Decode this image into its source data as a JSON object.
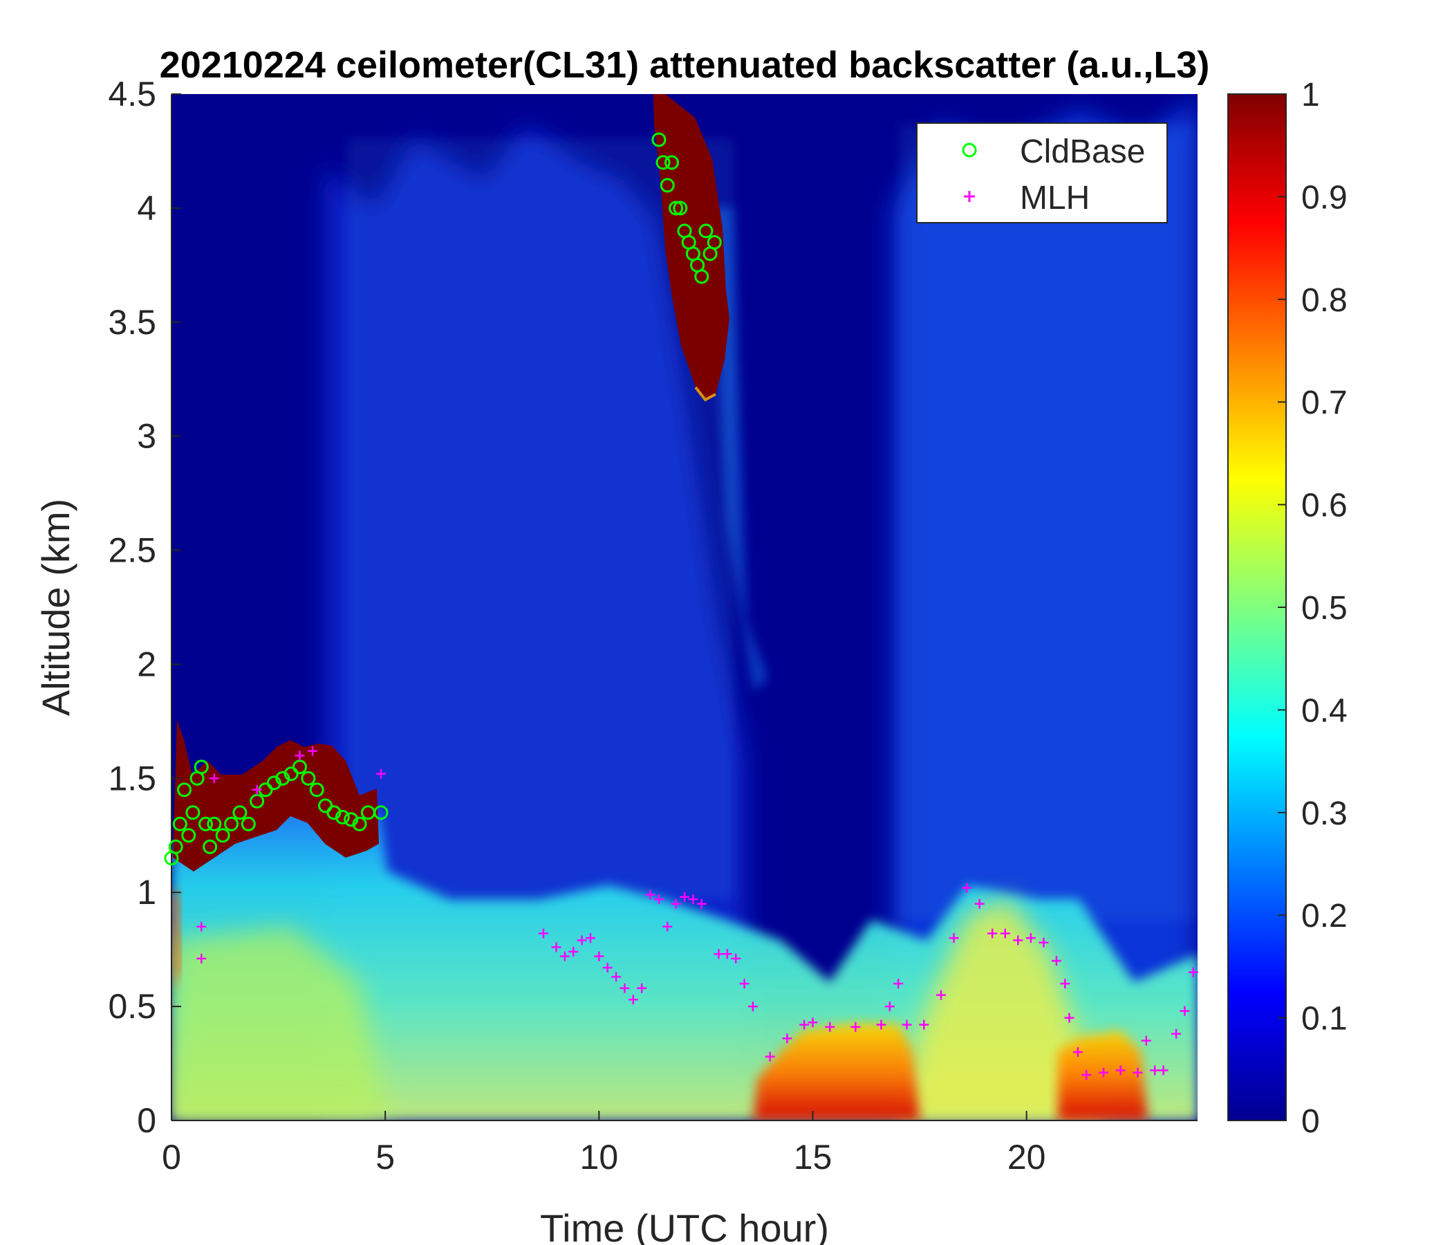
{
  "chart_data": {
    "type": "heatmap",
    "title": "20210224 ceilometer(CL31) attenuated backscatter (a.u.,L3)",
    "xlabel": "Time (UTC hour)",
    "ylabel": "Altitude (km)",
    "xlim": [
      0,
      24
    ],
    "ylim": [
      0,
      4.5
    ],
    "xticks": [
      0,
      5,
      10,
      15,
      20
    ],
    "yticks": [
      0,
      0.5,
      1,
      1.5,
      2,
      2.5,
      3,
      3.5,
      4,
      4.5
    ],
    "colorbar": {
      "colormap": "jet",
      "clim": [
        0,
        1
      ],
      "ticks": [
        0,
        0.1,
        0.2,
        0.3,
        0.4,
        0.5,
        0.6,
        0.7,
        0.8,
        0.9,
        1
      ]
    },
    "legend": {
      "location": "top-right",
      "entries": [
        "CldBase",
        "MLH"
      ]
    },
    "series": [
      {
        "name": "CldBase",
        "marker": "circle",
        "color": "#00ff00",
        "points": [
          [
            0.0,
            1.15
          ],
          [
            0.1,
            1.2
          ],
          [
            0.2,
            1.3
          ],
          [
            0.3,
            1.45
          ],
          [
            0.4,
            1.25
          ],
          [
            0.5,
            1.35
          ],
          [
            0.6,
            1.5
          ],
          [
            0.7,
            1.55
          ],
          [
            0.8,
            1.3
          ],
          [
            0.9,
            1.2
          ],
          [
            1.0,
            1.3
          ],
          [
            1.2,
            1.25
          ],
          [
            1.4,
            1.3
          ],
          [
            1.6,
            1.35
          ],
          [
            1.8,
            1.3
          ],
          [
            2.0,
            1.4
          ],
          [
            2.2,
            1.45
          ],
          [
            2.4,
            1.48
          ],
          [
            2.6,
            1.5
          ],
          [
            2.8,
            1.52
          ],
          [
            3.0,
            1.55
          ],
          [
            3.2,
            1.5
          ],
          [
            3.4,
            1.45
          ],
          [
            3.6,
            1.38
          ],
          [
            3.8,
            1.35
          ],
          [
            4.0,
            1.33
          ],
          [
            4.2,
            1.32
          ],
          [
            4.4,
            1.3
          ],
          [
            4.6,
            1.35
          ],
          [
            4.9,
            1.35
          ],
          [
            11.4,
            4.3
          ],
          [
            11.5,
            4.2
          ],
          [
            11.6,
            4.1
          ],
          [
            11.7,
            4.2
          ],
          [
            11.8,
            4.0
          ],
          [
            11.9,
            4.0
          ],
          [
            12.0,
            3.9
          ],
          [
            12.1,
            3.85
          ],
          [
            12.2,
            3.8
          ],
          [
            12.3,
            3.75
          ],
          [
            12.4,
            3.7
          ],
          [
            12.5,
            3.9
          ],
          [
            12.6,
            3.8
          ],
          [
            12.7,
            3.85
          ]
        ]
      },
      {
        "name": "MLH",
        "marker": "plus",
        "color": "#ff00ff",
        "points": [
          [
            0.7,
            0.85
          ],
          [
            0.7,
            0.71
          ],
          [
            1.0,
            1.5
          ],
          [
            2.0,
            1.45
          ],
          [
            3.0,
            1.6
          ],
          [
            3.3,
            1.62
          ],
          [
            4.9,
            1.52
          ],
          [
            8.7,
            0.82
          ],
          [
            9.0,
            0.76
          ],
          [
            9.2,
            0.72
          ],
          [
            9.4,
            0.74
          ],
          [
            9.6,
            0.79
          ],
          [
            9.8,
            0.8
          ],
          [
            10.0,
            0.72
          ],
          [
            10.2,
            0.67
          ],
          [
            10.4,
            0.63
          ],
          [
            10.6,
            0.58
          ],
          [
            10.8,
            0.53
          ],
          [
            11.0,
            0.58
          ],
          [
            11.2,
            0.99
          ],
          [
            11.4,
            0.97
          ],
          [
            11.6,
            0.85
          ],
          [
            11.8,
            0.95
          ],
          [
            12.0,
            0.98
          ],
          [
            12.2,
            0.97
          ],
          [
            12.4,
            0.95
          ],
          [
            12.8,
            0.73
          ],
          [
            13.0,
            0.73
          ],
          [
            13.2,
            0.71
          ],
          [
            13.4,
            0.6
          ],
          [
            13.6,
            0.5
          ],
          [
            14.0,
            0.28
          ],
          [
            14.4,
            0.36
          ],
          [
            14.8,
            0.42
          ],
          [
            15.0,
            0.43
          ],
          [
            15.4,
            0.41
          ],
          [
            16.0,
            0.41
          ],
          [
            16.6,
            0.42
          ],
          [
            16.8,
            0.5
          ],
          [
            17.0,
            0.6
          ],
          [
            17.2,
            0.42
          ],
          [
            17.6,
            0.42
          ],
          [
            18.0,
            0.55
          ],
          [
            18.3,
            0.8
          ],
          [
            18.6,
            1.02
          ],
          [
            18.9,
            0.95
          ],
          [
            19.2,
            0.82
          ],
          [
            19.5,
            0.82
          ],
          [
            19.8,
            0.79
          ],
          [
            20.1,
            0.8
          ],
          [
            20.4,
            0.78
          ],
          [
            20.7,
            0.7
          ],
          [
            20.9,
            0.6
          ],
          [
            21.0,
            0.45
          ],
          [
            21.2,
            0.3
          ],
          [
            21.4,
            0.2
          ],
          [
            21.8,
            0.21
          ],
          [
            22.2,
            0.22
          ],
          [
            22.6,
            0.21
          ],
          [
            22.8,
            0.35
          ],
          [
            23.0,
            0.22
          ],
          [
            23.2,
            0.22
          ],
          [
            23.5,
            0.38
          ],
          [
            23.7,
            0.48
          ],
          [
            23.9,
            0.65
          ]
        ]
      }
    ]
  }
}
